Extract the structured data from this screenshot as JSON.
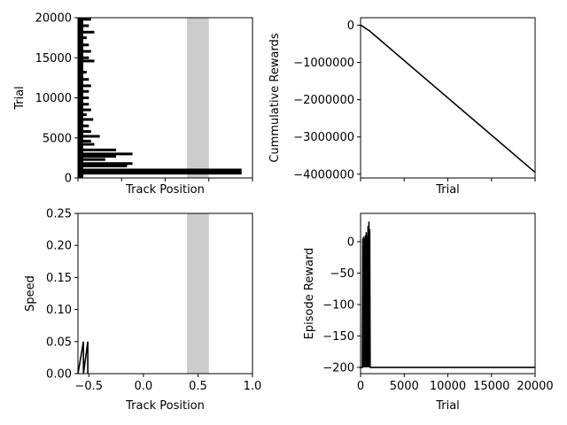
{
  "chart_data": [
    {
      "type": "scatter",
      "xlabel": "Track Position",
      "ylabel": "Trial",
      "xlim": [
        -0.6,
        1.0
      ],
      "ylim": [
        0,
        20000
      ],
      "x_tick_labels_shown": false,
      "y_ticks": [
        0,
        5000,
        10000,
        15000,
        20000
      ],
      "goal_region": [
        0.4,
        0.6
      ],
      "bands": [
        {
          "y": 600,
          "x0": -0.6,
          "x1": 0.9
        },
        {
          "y": 800,
          "x0": -0.6,
          "x1": 0.9
        },
        {
          "y": 1000,
          "x0": -0.6,
          "x1": 0.9
        },
        {
          "y": 1500,
          "x0": -0.6,
          "x1": -0.15
        },
        {
          "y": 1800,
          "x0": -0.6,
          "x1": -0.1
        },
        {
          "y": 2300,
          "x0": -0.6,
          "x1": -0.35
        },
        {
          "y": 2700,
          "x0": -0.6,
          "x1": -0.25
        },
        {
          "y": 3000,
          "x0": -0.6,
          "x1": -0.1
        },
        {
          "y": 3500,
          "x0": -0.6,
          "x1": -0.25
        },
        {
          "y": 4200,
          "x0": -0.6,
          "x1": -0.45
        },
        {
          "y": 4600,
          "x0": -0.6,
          "x1": -0.48
        },
        {
          "y": 5200,
          "x0": -0.6,
          "x1": -0.4
        },
        {
          "y": 5800,
          "x0": -0.6,
          "x1": -0.48
        },
        {
          "y": 6500,
          "x0": -0.6,
          "x1": -0.5
        },
        {
          "y": 7300,
          "x0": -0.6,
          "x1": -0.46
        },
        {
          "y": 7900,
          "x0": -0.6,
          "x1": -0.52
        },
        {
          "y": 8500,
          "x0": -0.6,
          "x1": -0.48
        },
        {
          "y": 9200,
          "x0": -0.6,
          "x1": -0.5
        },
        {
          "y": 10000,
          "x0": -0.6,
          "x1": -0.5
        },
        {
          "y": 10800,
          "x0": -0.6,
          "x1": -0.5
        },
        {
          "y": 11500,
          "x0": -0.6,
          "x1": -0.48
        },
        {
          "y": 12300,
          "x0": -0.6,
          "x1": -0.5
        },
        {
          "y": 13200,
          "x0": -0.6,
          "x1": -0.52
        },
        {
          "y": 14600,
          "x0": -0.6,
          "x1": -0.45
        },
        {
          "y": 15000,
          "x0": -0.6,
          "x1": -0.5
        },
        {
          "y": 15800,
          "x0": -0.6,
          "x1": -0.48
        },
        {
          "y": 16600,
          "x0": -0.6,
          "x1": -0.5
        },
        {
          "y": 17500,
          "x0": -0.6,
          "x1": -0.52
        },
        {
          "y": 18200,
          "x0": -0.6,
          "x1": -0.45
        },
        {
          "y": 19000,
          "x0": -0.6,
          "x1": -0.5
        },
        {
          "y": 19800,
          "x0": -0.6,
          "x1": -0.48
        }
      ]
    },
    {
      "type": "line",
      "xlabel": "Trial",
      "ylabel": "Cummulative Rewards",
      "xlim": [
        0,
        20000
      ],
      "ylim": [
        -4100000,
        200000
      ],
      "x_tick_labels_shown": false,
      "y_ticks": [
        0,
        -1000000,
        -2000000,
        -3000000,
        -4000000
      ],
      "y_tick_labels": [
        "0",
        "−1000000",
        "−2000000",
        "−3000000",
        "−4000000"
      ],
      "series": [
        {
          "x": [
            0,
            300,
            600,
            800,
            1000,
            1200,
            20000
          ],
          "values": [
            0,
            -40000,
            -90000,
            -120000,
            -150000,
            -190000,
            -3950000
          ]
        }
      ]
    },
    {
      "type": "line",
      "xlabel": "Track Position",
      "ylabel": "Speed",
      "xlim": [
        -0.6,
        1.0
      ],
      "ylim": [
        0,
        0.25
      ],
      "x_ticks": [
        -0.5,
        0.0,
        0.5,
        1.0
      ],
      "x_tick_labels": [
        "−0.5",
        "0.0",
        "0.5",
        "1.0"
      ],
      "y_ticks": [
        0,
        0.05,
        0.1,
        0.15,
        0.2,
        0.25
      ],
      "y_tick_labels": [
        "0.00",
        "0.05",
        "0.10",
        "0.15",
        "0.20",
        "0.25"
      ],
      "goal_region": [
        0.4,
        0.6
      ],
      "series": [
        {
          "x": [
            -0.6,
            -0.55,
            -0.55,
            -0.51,
            -0.51
          ],
          "values": [
            0,
            0.05,
            0,
            0.05,
            0
          ]
        }
      ]
    },
    {
      "type": "line",
      "xlabel": "Trial",
      "ylabel": "Episode Reward",
      "xlim": [
        0,
        20000
      ],
      "ylim": [
        -210,
        45
      ],
      "x_ticks": [
        0,
        5000,
        10000,
        15000,
        20000
      ],
      "x_tick_labels": [
        "0",
        "5000",
        "10000",
        "15000",
        "20000"
      ],
      "y_ticks": [
        0,
        -50,
        -100,
        -150,
        -200
      ],
      "y_tick_labels": [
        "0",
        "−50",
        "−100",
        "−150",
        "−200"
      ],
      "series": [
        {
          "x": [
            0,
            200,
            250,
            300,
            350,
            400,
            450,
            500,
            550,
            600,
            650,
            700,
            750,
            800,
            850,
            900,
            950,
            1000,
            1050,
            1100,
            1150,
            1200,
            20000
          ],
          "values": [
            -200,
            -200,
            5,
            -200,
            8,
            -200,
            5,
            -200,
            10,
            -200,
            15,
            -200,
            10,
            -200,
            25,
            -200,
            32,
            -200,
            20,
            -200,
            -200,
            -200,
            -200
          ]
        }
      ]
    }
  ]
}
